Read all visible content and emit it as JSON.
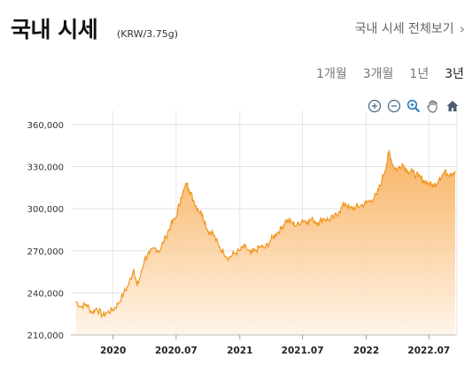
{
  "header": {
    "title": "국내 시세",
    "unit": "(KRW/3.75g)",
    "view_all": "국내 시세 전체보기"
  },
  "periods": [
    {
      "label": "1개월",
      "active": false
    },
    {
      "label": "3개월",
      "active": false
    },
    {
      "label": "1년",
      "active": false
    },
    {
      "label": "3년",
      "active": true
    }
  ],
  "toolbar": [
    "zoom-in-icon",
    "zoom-out-icon",
    "zoom-magnifier-icon",
    "pan-hand-icon",
    "home-icon"
  ],
  "colors": {
    "line": "#f0961e",
    "fill_top": "#f7a74a",
    "fill_bottom": "#fff4e8",
    "grid": "#dddddd"
  },
  "chart_data": {
    "type": "area",
    "title": "",
    "xlabel": "",
    "ylabel": "",
    "ylim": [
      210000,
      370000
    ],
    "y_ticks": [
      "210,000",
      "240,000",
      "270,000",
      "300,000",
      "330,000",
      "360,000"
    ],
    "x_ticks": [
      "2020",
      "2020.07",
      "2021",
      "2021.07",
      "2022",
      "2022.07"
    ],
    "grid": true,
    "series": [
      {
        "x": [
          "2019-09-15",
          "2019-10-01",
          "2019-10-15",
          "2019-11-01",
          "2019-11-15",
          "2019-12-01",
          "2019-12-15",
          "2020-01-01",
          "2020-01-15",
          "2020-02-01",
          "2020-02-15",
          "2020-03-01",
          "2020-03-10",
          "2020-03-20",
          "2020-04-01",
          "2020-04-15",
          "2020-05-01",
          "2020-05-15",
          "2020-06-01",
          "2020-06-15",
          "2020-07-01",
          "2020-07-15",
          "2020-08-01",
          "2020-08-07",
          "2020-08-20",
          "2020-09-01",
          "2020-09-15",
          "2020-10-01",
          "2020-10-15",
          "2020-11-01",
          "2020-11-15",
          "2020-12-01",
          "2020-12-15",
          "2021-01-01",
          "2021-01-15",
          "2021-02-01",
          "2021-02-15",
          "2021-03-01",
          "2021-03-15",
          "2021-04-01",
          "2021-04-15",
          "2021-05-01",
          "2021-05-15",
          "2021-06-01",
          "2021-06-15",
          "2021-07-01",
          "2021-07-15",
          "2021-08-01",
          "2021-08-15",
          "2021-09-01",
          "2021-09-15",
          "2021-10-01",
          "2021-10-15",
          "2021-11-01",
          "2021-11-15",
          "2021-12-01",
          "2021-12-15",
          "2022-01-01",
          "2022-01-15",
          "2022-02-01",
          "2022-02-15",
          "2022-03-01",
          "2022-03-08",
          "2022-03-20",
          "2022-04-01",
          "2022-04-15",
          "2022-05-01",
          "2022-05-15",
          "2022-06-01",
          "2022-06-15",
          "2022-07-01",
          "2022-07-15",
          "2022-08-01",
          "2022-08-15",
          "2022-09-01",
          "2022-09-15"
        ],
        "values": [
          234000,
          230000,
          232000,
          226000,
          229000,
          224000,
          226000,
          228000,
          232000,
          240000,
          246000,
          257000,
          245000,
          252000,
          264000,
          268000,
          272000,
          270000,
          280000,
          288000,
          294000,
          308000,
          318000,
          314000,
          306000,
          300000,
          296000,
          284000,
          283000,
          273000,
          269000,
          265000,
          268000,
          270000,
          273000,
          268000,
          270000,
          273000,
          272000,
          278000,
          282000,
          286000,
          292000,
          290000,
          288000,
          292000,
          291000,
          292000,
          290000,
          293000,
          292000,
          294000,
          298000,
          304000,
          300000,
          301000,
          302000,
          304000,
          306000,
          310000,
          320000,
          332000,
          341000,
          330000,
          328000,
          332000,
          327000,
          326000,
          323000,
          320000,
          318000,
          316000,
          322000,
          326000,
          325000,
          327000
        ]
      }
    ]
  }
}
